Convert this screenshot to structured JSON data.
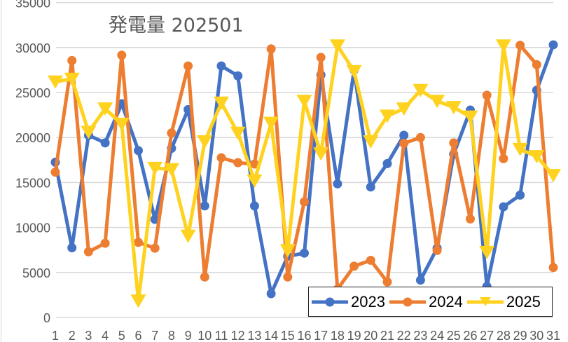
{
  "chart_data": {
    "type": "line",
    "title": "発電量 202501",
    "xlabel": "",
    "ylabel": "",
    "ylim": [
      0,
      35000
    ],
    "yticks": [
      0,
      5000,
      10000,
      15000,
      20000,
      25000,
      30000,
      35000
    ],
    "ytick_labels": [
      "0",
      "5000",
      "10000",
      "15000",
      "20000",
      "25000",
      "30000",
      "35000"
    ],
    "grid": true,
    "legend_position": "bottom-right-inside",
    "categories": [
      "1",
      "2",
      "3",
      "4",
      "5",
      "6",
      "7",
      "8",
      "9",
      "10",
      "11",
      "12",
      "13",
      "14",
      "15",
      "16",
      "17",
      "18",
      "19",
      "20",
      "21",
      "22",
      "23",
      "24",
      "25",
      "26",
      "27",
      "28",
      "29",
      "30",
      "31"
    ],
    "series": [
      {
        "name": "2023",
        "color": "#4472C4",
        "marker": "circle",
        "values": [
          17250,
          7750,
          20250,
          19400,
          23750,
          18550,
          10900,
          18800,
          23100,
          12400,
          27950,
          26850,
          12400,
          2650,
          6800,
          7150,
          26950,
          14850,
          27500,
          14500,
          17100,
          20250,
          4150,
          7700,
          18150,
          23050,
          3450,
          12300,
          13600,
          25250,
          30300
        ]
      },
      {
        "name": "2024",
        "color": "#ED7D31",
        "marker": "circle",
        "values": [
          16150,
          28550,
          7300,
          8250,
          29150,
          8350,
          7700,
          20500,
          27950,
          4500,
          17750,
          17200,
          17050,
          29850,
          4500,
          12850,
          28900,
          3150,
          5700,
          6350,
          3950,
          19350,
          20000,
          7450,
          19400,
          10950,
          24700,
          17650,
          30250,
          28100,
          5550
        ]
      },
      {
        "name": "2025",
        "color": "#FFD21F",
        "marker": "triangle-down",
        "values": [
          26200,
          26500,
          20600,
          23200,
          21500,
          1850,
          16600,
          16450,
          9050,
          19550,
          23850,
          20500,
          15200,
          21600,
          7450,
          24050,
          18200,
          30200,
          27350,
          19550,
          22400,
          23200,
          25250,
          24050,
          23350,
          22300,
          7250,
          30200,
          18700,
          17900,
          15800
        ]
      }
    ]
  },
  "legend": {
    "items": [
      {
        "label": "2023",
        "color": "#4472C4"
      },
      {
        "label": "2024",
        "color": "#ED7D31"
      },
      {
        "label": "2025",
        "color": "#FFD21F"
      }
    ]
  },
  "colors": {
    "grid": "#d9d9d9",
    "axis_text": "#595959",
    "title": "#595959"
  }
}
